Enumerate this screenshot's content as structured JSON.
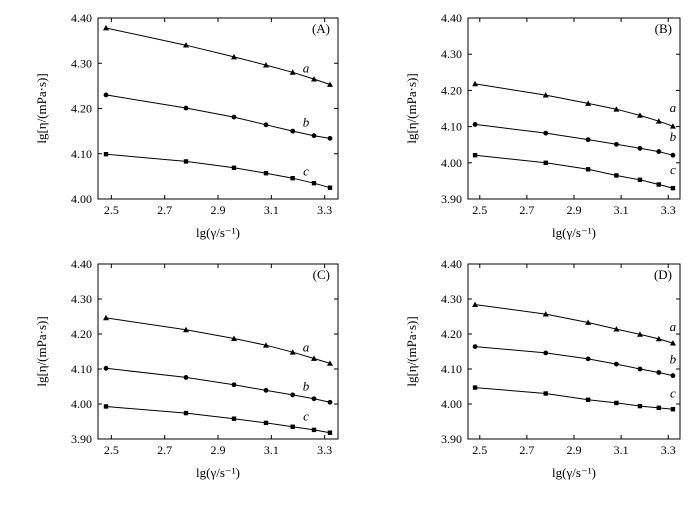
{
  "chart_data": [
    {
      "type": "line",
      "panel_label": "(A)",
      "xlabel": "lg(γ/s⁻¹)",
      "ylabel": "lg[η/(mPa·s)]",
      "xlim": [
        2.45,
        3.35
      ],
      "ylim": [
        4.0,
        4.4
      ],
      "xticks": [
        "2.5",
        "2.7",
        "2.9",
        "3.1",
        "3.3"
      ],
      "yticks": [
        "4.00",
        "4.10",
        "4.20",
        "4.30",
        "4.40"
      ],
      "grid": false,
      "series": [
        {
          "name": "a",
          "marker": "triangle",
          "x": [
            2.48,
            2.78,
            2.96,
            3.08,
            3.18,
            3.26,
            3.32
          ],
          "y": [
            4.378,
            4.34,
            4.314,
            4.296,
            4.28,
            4.265,
            4.253
          ]
        },
        {
          "name": "b",
          "marker": "circle",
          "x": [
            2.48,
            2.78,
            2.96,
            3.08,
            3.18,
            3.26,
            3.32
          ],
          "y": [
            4.23,
            4.201,
            4.181,
            4.164,
            4.15,
            4.14,
            4.134
          ]
        },
        {
          "name": "c",
          "marker": "square",
          "x": [
            2.48,
            2.78,
            2.96,
            3.08,
            3.18,
            3.26,
            3.32
          ],
          "y": [
            4.099,
            4.083,
            4.069,
            4.057,
            4.046,
            4.035,
            4.025
          ]
        }
      ]
    },
    {
      "type": "line",
      "panel_label": "(B)",
      "xlabel": "lg(γ/s⁻¹)",
      "ylabel": "lg[η/(mPa·s)]",
      "xlim": [
        2.45,
        3.35
      ],
      "ylim": [
        3.9,
        4.4
      ],
      "xticks": [
        "2.5",
        "2.7",
        "2.9",
        "3.1",
        "3.3"
      ],
      "yticks": [
        "3.90",
        "4.00",
        "4.10",
        "4.20",
        "4.30",
        "4.40"
      ],
      "grid": false,
      "series": [
        {
          "name": "a",
          "marker": "triangle",
          "x": [
            2.48,
            2.78,
            2.96,
            3.08,
            3.18,
            3.26,
            3.32
          ],
          "y": [
            4.218,
            4.187,
            4.164,
            4.148,
            4.131,
            4.115,
            4.101
          ]
        },
        {
          "name": "b",
          "marker": "circle",
          "x": [
            2.48,
            2.78,
            2.96,
            3.08,
            3.18,
            3.26,
            3.32
          ],
          "y": [
            4.106,
            4.082,
            4.064,
            4.051,
            4.04,
            4.031,
            4.021
          ]
        },
        {
          "name": "c",
          "marker": "square",
          "x": [
            2.48,
            2.78,
            2.96,
            3.08,
            3.18,
            3.26,
            3.32
          ],
          "y": [
            4.021,
            4.0,
            3.982,
            3.965,
            3.953,
            3.94,
            3.93
          ]
        }
      ]
    },
    {
      "type": "line",
      "panel_label": "(C)",
      "xlabel": "lg(γ/s⁻¹)",
      "ylabel": "lg[η/(mPa·s)]",
      "xlim": [
        2.45,
        3.35
      ],
      "ylim": [
        3.9,
        4.4
      ],
      "xticks": [
        "2.5",
        "2.7",
        "2.9",
        "3.1",
        "3.3"
      ],
      "yticks": [
        "3.90",
        "4.00",
        "4.10",
        "4.20",
        "4.30",
        "4.40"
      ],
      "grid": false,
      "series": [
        {
          "name": "a",
          "marker": "triangle",
          "x": [
            2.48,
            2.78,
            2.96,
            3.08,
            3.18,
            3.26,
            3.32
          ],
          "y": [
            4.246,
            4.212,
            4.187,
            4.168,
            4.148,
            4.13,
            4.116
          ]
        },
        {
          "name": "b",
          "marker": "circle",
          "x": [
            2.48,
            2.78,
            2.96,
            3.08,
            3.18,
            3.26,
            3.32
          ],
          "y": [
            4.102,
            4.076,
            4.055,
            4.039,
            4.026,
            4.015,
            4.005
          ]
        },
        {
          "name": "c",
          "marker": "square",
          "x": [
            2.48,
            2.78,
            2.96,
            3.08,
            3.18,
            3.26,
            3.32
          ],
          "y": [
            3.993,
            3.974,
            3.958,
            3.946,
            3.935,
            3.926,
            3.918
          ]
        }
      ]
    },
    {
      "type": "line",
      "panel_label": "(D)",
      "xlabel": "lg(γ/s⁻¹)",
      "ylabel": "lg[η/(mPa·s)]",
      "xlim": [
        2.45,
        3.35
      ],
      "ylim": [
        3.9,
        4.4
      ],
      "xticks": [
        "2.5",
        "2.7",
        "2.9",
        "3.1",
        "3.3"
      ],
      "yticks": [
        "3.90",
        "4.00",
        "4.10",
        "4.20",
        "4.30",
        "4.40"
      ],
      "grid": false,
      "series": [
        {
          "name": "a",
          "marker": "triangle",
          "x": [
            2.48,
            2.78,
            2.96,
            3.08,
            3.18,
            3.26,
            3.32
          ],
          "y": [
            4.284,
            4.257,
            4.233,
            4.214,
            4.199,
            4.186,
            4.174
          ]
        },
        {
          "name": "b",
          "marker": "circle",
          "x": [
            2.48,
            2.78,
            2.96,
            3.08,
            3.18,
            3.26,
            3.32
          ],
          "y": [
            4.164,
            4.146,
            4.129,
            4.114,
            4.1,
            4.09,
            4.081
          ]
        },
        {
          "name": "c",
          "marker": "square",
          "x": [
            2.48,
            2.78,
            2.96,
            3.08,
            3.18,
            3.26,
            3.32
          ],
          "y": [
            4.047,
            4.03,
            4.012,
            4.003,
            3.994,
            3.989,
            3.985
          ]
        }
      ]
    }
  ]
}
